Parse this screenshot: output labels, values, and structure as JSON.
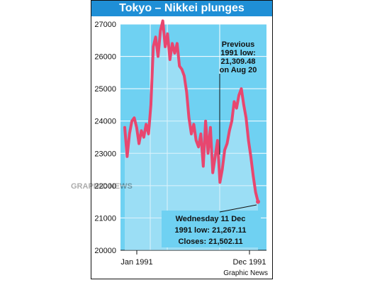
{
  "title": "Tokyo – Nikkei plunges",
  "credit": "Graphic News",
  "watermark": "GRAPHIC NEWS",
  "colors": {
    "title_bg": "#1f8fd6",
    "plot_bg": "#6fd1f2",
    "line": "#e8466f",
    "grid": "#ffffff"
  },
  "chart_data": {
    "type": "line",
    "title": "Tokyo – Nikkei plunges",
    "xlabel": "",
    "ylabel": "",
    "ylim": [
      20000,
      27000
    ],
    "yticks": [
      "27000",
      "26000",
      "25000",
      "24000",
      "23000",
      "22000",
      "21000",
      "20000"
    ],
    "x_tick_labels": [
      "Jan 1991",
      "Dec 1991"
    ],
    "grid": true,
    "series": [
      {
        "values": [
          23800,
          22900,
          23600,
          24000,
          24100,
          23800,
          23300,
          23700,
          23500,
          23900,
          23600,
          24500,
          26300,
          26600,
          26000,
          26800,
          27100,
          26300,
          26700,
          25900,
          26400,
          26100,
          26400,
          25700,
          25600,
          25400,
          24900,
          24100,
          23600,
          23900,
          23400,
          23200,
          23600,
          22600,
          24000,
          23000,
          23800,
          22400,
          22900,
          23400,
          22100,
          22500,
          23100,
          23300,
          23700,
          24000,
          24600,
          24400,
          24800,
          25000,
          24500,
          24100,
          23400,
          22900,
          22300,
          21800,
          21502.11
        ]
      }
    ],
    "annotations": [
      {
        "lines": [
          "Previous",
          "1991 low:",
          "21,309.48",
          "on Aug 20"
        ]
      },
      {
        "lines": [
          "Wednesday 11 Dec",
          "1991 low: 21,267.11",
          "Closes: 21,502.11"
        ]
      }
    ]
  }
}
